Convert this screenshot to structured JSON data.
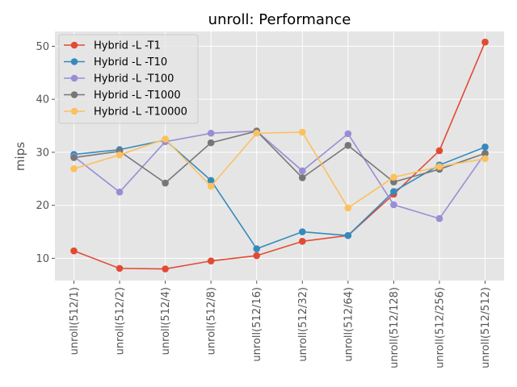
{
  "chart_data": {
    "type": "line",
    "title": "unroll: Performance",
    "xlabel": "",
    "ylabel": "mips",
    "ylim": [
      5.8,
      52.8
    ],
    "yticks": [
      10,
      20,
      30,
      40,
      50
    ],
    "grid": true,
    "legend_position": "top-left",
    "categories": [
      "unroll(512/1)",
      "unroll(512/2)",
      "unroll(512/4)",
      "unroll(512/8)",
      "unroll(512/16)",
      "unroll(512/32)",
      "unroll(512/64)",
      "unroll(512/128)",
      "unroll(512/256)",
      "unroll(512/512)"
    ],
    "series": [
      {
        "name": "Hybrid -L -T1",
        "color": "#E24A33",
        "values": [
          11.4,
          8.1,
          8.0,
          9.5,
          10.5,
          13.2,
          14.3,
          22.1,
          30.3,
          50.8
        ]
      },
      {
        "name": "Hybrid -L -T10",
        "color": "#348ABD",
        "values": [
          29.6,
          30.5,
          32.3,
          24.7,
          11.8,
          15.0,
          14.3,
          22.6,
          27.6,
          31.0
        ]
      },
      {
        "name": "Hybrid -L -T100",
        "color": "#988ED5",
        "values": [
          29.2,
          22.5,
          32.0,
          33.6,
          34.0,
          26.5,
          33.5,
          20.1,
          17.5,
          29.8
        ]
      },
      {
        "name": "Hybrid -L -T1000",
        "color": "#777777",
        "values": [
          29.0,
          30.2,
          24.2,
          31.8,
          34.0,
          25.2,
          31.3,
          24.4,
          26.8,
          29.8
        ]
      },
      {
        "name": "Hybrid -L -T10000",
        "color": "#FBC15E",
        "values": [
          26.9,
          29.5,
          32.5,
          23.6,
          33.6,
          33.8,
          19.5,
          25.3,
          27.3,
          28.8
        ]
      }
    ]
  }
}
